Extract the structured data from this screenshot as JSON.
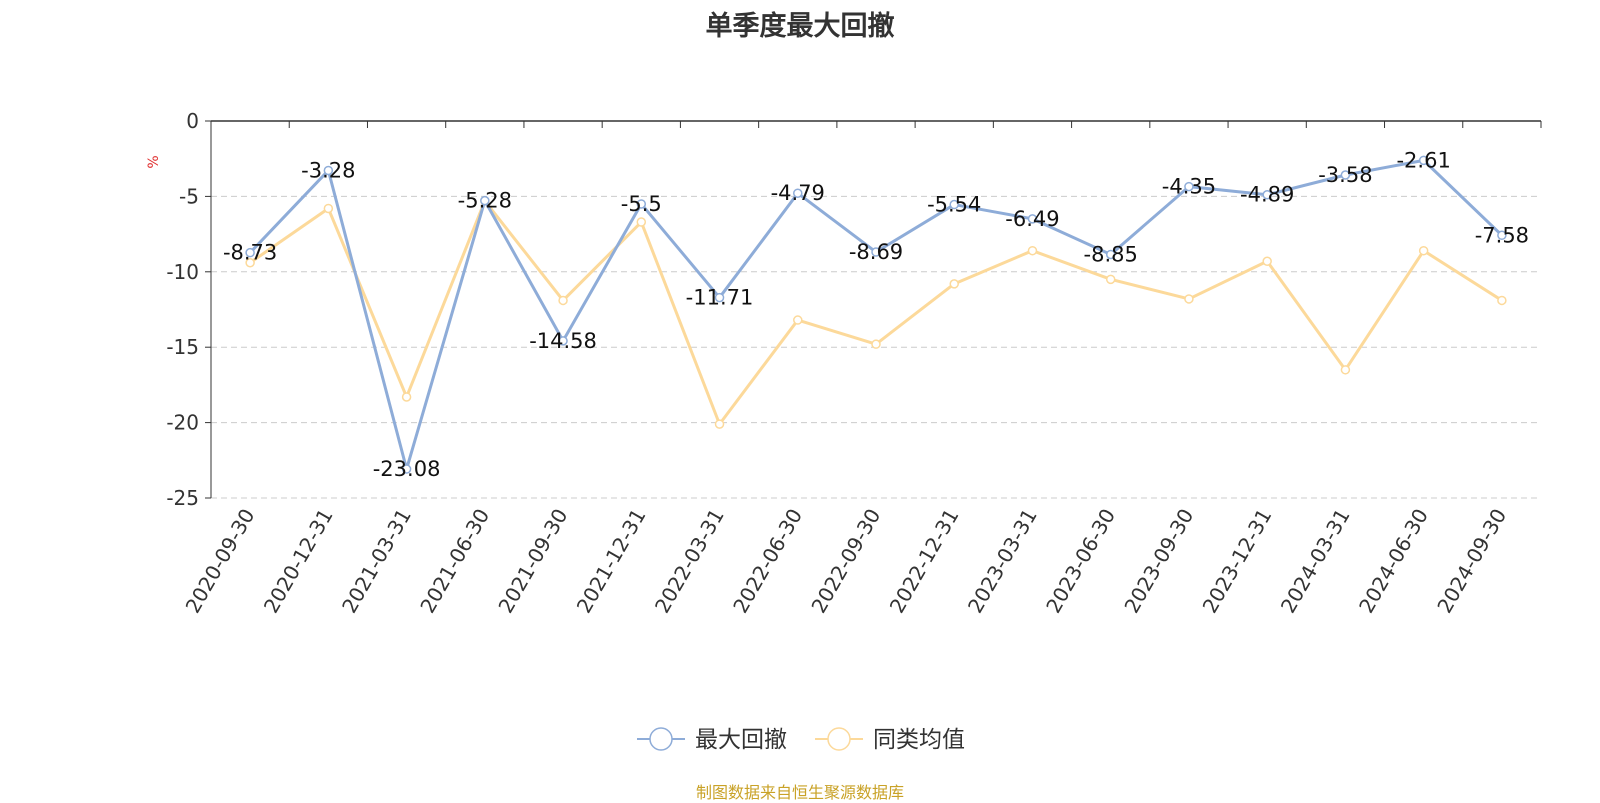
{
  "chart_data": {
    "type": "line",
    "title": "单季度最大回撤",
    "ylabel": "%",
    "ylim": [
      -25,
      0
    ],
    "yticks": [
      0,
      -5,
      -10,
      -15,
      -20,
      -25
    ],
    "grid": true,
    "legend_position": "bottom-center",
    "categories": [
      "2020-09-30",
      "2020-12-31",
      "2021-03-31",
      "2021-06-30",
      "2021-09-30",
      "2021-12-31",
      "2022-03-31",
      "2022-06-30",
      "2022-09-30",
      "2022-12-31",
      "2023-03-31",
      "2023-06-30",
      "2023-09-30",
      "2023-12-31",
      "2024-03-31",
      "2024-06-30",
      "2024-09-30"
    ],
    "series": [
      {
        "name": "最大回撤",
        "color": "#8eacd8",
        "labels": true,
        "values": [
          -8.73,
          -3.28,
          -23.08,
          -5.28,
          -14.58,
          -5.5,
          -11.71,
          -4.79,
          -8.69,
          -5.54,
          -6.49,
          -8.85,
          -4.35,
          -4.89,
          -3.58,
          -2.61,
          -7.58
        ]
      },
      {
        "name": "同类均值",
        "color": "#fcd99a",
        "labels": false,
        "values": [
          -9.4,
          -5.8,
          -18.3,
          -5.3,
          -11.9,
          -6.7,
          -20.1,
          -13.2,
          -14.8,
          -10.8,
          -8.6,
          -10.5,
          -11.8,
          -9.3,
          -16.5,
          -8.6,
          -11.9
        ]
      }
    ]
  },
  "footer": {
    "source": "制图数据来自恒生聚源数据库"
  }
}
